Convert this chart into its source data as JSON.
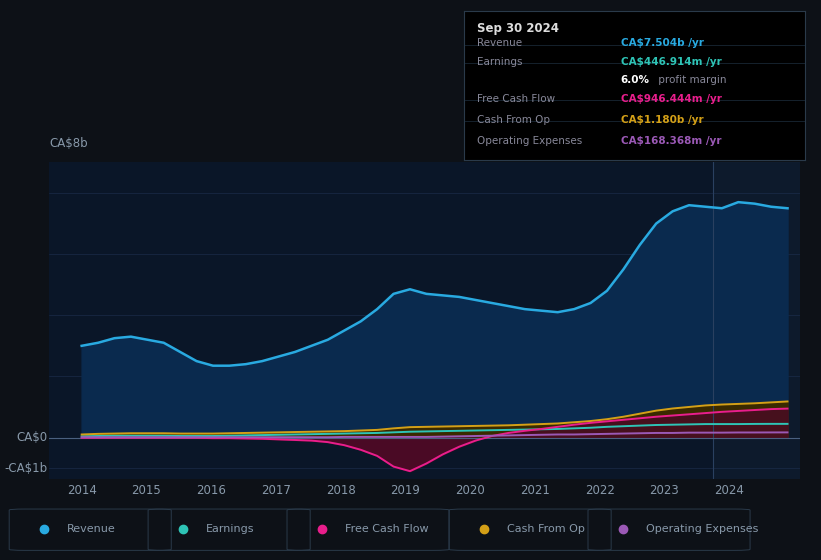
{
  "bg_color": "#0d1117",
  "plot_bg_color": "#0a1628",
  "grid_color": "#1e3050",
  "text_color": "#8899aa",
  "title_color": "#ffffff",
  "y_label": "CA$8b",
  "y_label_neg": "-CA$1b",
  "y_label_zero": "CA$0",
  "x_ticks": [
    2014,
    2015,
    2016,
    2017,
    2018,
    2019,
    2020,
    2021,
    2022,
    2023,
    2024
  ],
  "ylim": [
    -1.35,
    9.0
  ],
  "xlim_start": 2013.5,
  "xlim_end": 2025.1,
  "divider_x": 2023.75,
  "line_colors": {
    "revenue": "#29aae1",
    "earnings": "#2ec4b6",
    "free_cash_flow": "#e91e8c",
    "cash_from_op": "#d4a017",
    "operating_expenses": "#9b59b6"
  },
  "fill_colors": {
    "revenue": "#0a2a4e",
    "earnings": "#0d3530",
    "free_cash_flow": "#4a0a25",
    "cash_from_op": "#3a2a00",
    "operating_expenses": "#2a0a3e"
  },
  "info_box": {
    "title": "Sep 30 2024",
    "rows": [
      {
        "label": "Revenue",
        "value": "CA$7.504b /yr",
        "color": "#29aae1"
      },
      {
        "label": "Earnings",
        "value": "CA$446.914m /yr",
        "color": "#2ec4b6"
      },
      {
        "label": "",
        "value": "6.0% profit margin",
        "color": "#ffffff"
      },
      {
        "label": "Free Cash Flow",
        "value": "CA$946.444m /yr",
        "color": "#e91e8c"
      },
      {
        "label": "Cash From Op",
        "value": "CA$1.180b /yr",
        "color": "#d4a017"
      },
      {
        "label": "Operating Expenses",
        "value": "CA$168.368m /yr",
        "color": "#9b59b6"
      }
    ]
  },
  "legend_items": [
    {
      "label": "Revenue",
      "color": "#29aae1"
    },
    {
      "label": "Earnings",
      "color": "#2ec4b6"
    },
    {
      "label": "Free Cash Flow",
      "color": "#e91e8c"
    },
    {
      "label": "Cash From Op",
      "color": "#d4a017"
    },
    {
      "label": "Operating Expenses",
      "color": "#9b59b6"
    }
  ],
  "revenue": [
    3.0,
    3.1,
    3.25,
    3.3,
    3.2,
    3.1,
    2.8,
    2.5,
    2.35,
    2.35,
    2.4,
    2.5,
    2.65,
    2.8,
    3.0,
    3.2,
    3.5,
    3.8,
    4.2,
    4.7,
    4.85,
    4.7,
    4.65,
    4.6,
    4.5,
    4.4,
    4.3,
    4.2,
    4.15,
    4.1,
    4.2,
    4.4,
    4.8,
    5.5,
    6.3,
    7.0,
    7.4,
    7.6,
    7.55,
    7.5,
    7.7,
    7.65,
    7.55,
    7.5
  ],
  "earnings": [
    0.04,
    0.05,
    0.06,
    0.06,
    0.06,
    0.06,
    0.05,
    0.05,
    0.05,
    0.06,
    0.07,
    0.08,
    0.09,
    0.1,
    0.11,
    0.12,
    0.13,
    0.14,
    0.15,
    0.17,
    0.19,
    0.2,
    0.21,
    0.22,
    0.23,
    0.24,
    0.25,
    0.26,
    0.27,
    0.28,
    0.3,
    0.32,
    0.35,
    0.37,
    0.39,
    0.41,
    0.42,
    0.43,
    0.44,
    0.44,
    0.44,
    0.445,
    0.447,
    0.447
  ],
  "free_cash_flow": [
    -0.01,
    -0.01,
    -0.01,
    -0.01,
    -0.01,
    -0.01,
    -0.01,
    -0.01,
    -0.02,
    -0.02,
    -0.03,
    -0.04,
    -0.06,
    -0.08,
    -0.1,
    -0.15,
    -0.25,
    -0.4,
    -0.6,
    -0.95,
    -1.1,
    -0.85,
    -0.55,
    -0.3,
    -0.1,
    0.05,
    0.15,
    0.22,
    0.28,
    0.35,
    0.42,
    0.48,
    0.53,
    0.58,
    0.63,
    0.68,
    0.72,
    0.76,
    0.8,
    0.84,
    0.87,
    0.9,
    0.93,
    0.946
  ],
  "cash_from_op": [
    0.1,
    0.12,
    0.13,
    0.14,
    0.14,
    0.14,
    0.13,
    0.13,
    0.13,
    0.14,
    0.15,
    0.16,
    0.17,
    0.18,
    0.19,
    0.2,
    0.21,
    0.23,
    0.25,
    0.3,
    0.34,
    0.35,
    0.36,
    0.37,
    0.38,
    0.39,
    0.4,
    0.42,
    0.44,
    0.46,
    0.5,
    0.54,
    0.6,
    0.68,
    0.78,
    0.88,
    0.95,
    1.0,
    1.05,
    1.08,
    1.1,
    1.12,
    1.15,
    1.18
  ],
  "operating_expenses": [
    0.01,
    0.01,
    0.01,
    0.01,
    0.01,
    0.01,
    0.01,
    0.01,
    0.01,
    0.01,
    0.01,
    0.01,
    0.01,
    0.01,
    0.01,
    0.01,
    0.02,
    0.02,
    0.02,
    0.02,
    0.02,
    0.02,
    0.03,
    0.04,
    0.05,
    0.06,
    0.07,
    0.08,
    0.09,
    0.1,
    0.1,
    0.11,
    0.12,
    0.13,
    0.14,
    0.15,
    0.15,
    0.16,
    0.16,
    0.16,
    0.165,
    0.165,
    0.167,
    0.168
  ]
}
